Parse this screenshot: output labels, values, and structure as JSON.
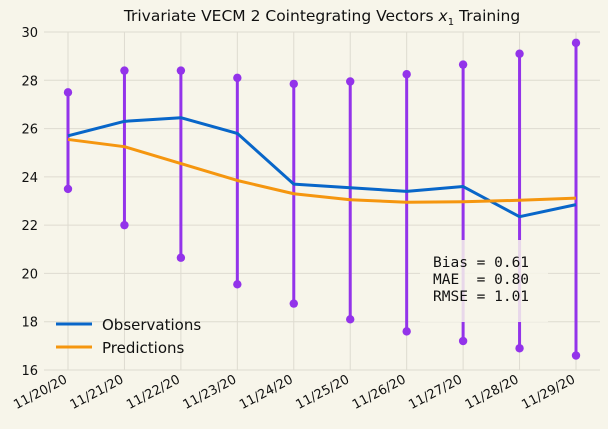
{
  "chart_data": {
    "type": "line",
    "title_text": "Trivariate VECM 2 Cointegrating Vectors ",
    "title_var": "x",
    "title_sub": "1",
    "title_tail": " Training",
    "categories": [
      "11/20/20",
      "11/21/20",
      "11/22/20",
      "11/23/20",
      "11/24/20",
      "11/25/20",
      "11/26/20",
      "11/27/20",
      "11/28/20",
      "11/29/20"
    ],
    "ylim": [
      16,
      30
    ],
    "yticks": [
      16,
      18,
      20,
      22,
      24,
      26,
      28,
      30
    ],
    "grid": true,
    "series": [
      {
        "name": "Observations",
        "color": "#0866c9",
        "values": [
          25.7,
          26.3,
          26.45,
          25.8,
          23.7,
          23.55,
          23.4,
          23.6,
          22.35,
          22.85
        ]
      },
      {
        "name": "Predictions",
        "color": "#f5960f",
        "values": [
          25.55,
          25.25,
          24.55,
          23.85,
          23.3,
          23.05,
          22.95,
          22.97,
          23.03,
          23.12
        ]
      }
    ],
    "intervals": {
      "color": "#9333ea",
      "lower": [
        23.5,
        22.0,
        20.65,
        19.55,
        18.75,
        18.1,
        17.6,
        17.2,
        16.9,
        16.6
      ],
      "upper": [
        27.5,
        28.4,
        28.4,
        28.1,
        27.85,
        27.95,
        28.25,
        28.65,
        29.1,
        29.55
      ]
    },
    "legend_position": "lower-left",
    "annotation": {
      "lines": [
        "Bias = 0.61",
        "MAE  = 0.80",
        "RMSE = 1.01"
      ],
      "position": "lower-right"
    }
  }
}
